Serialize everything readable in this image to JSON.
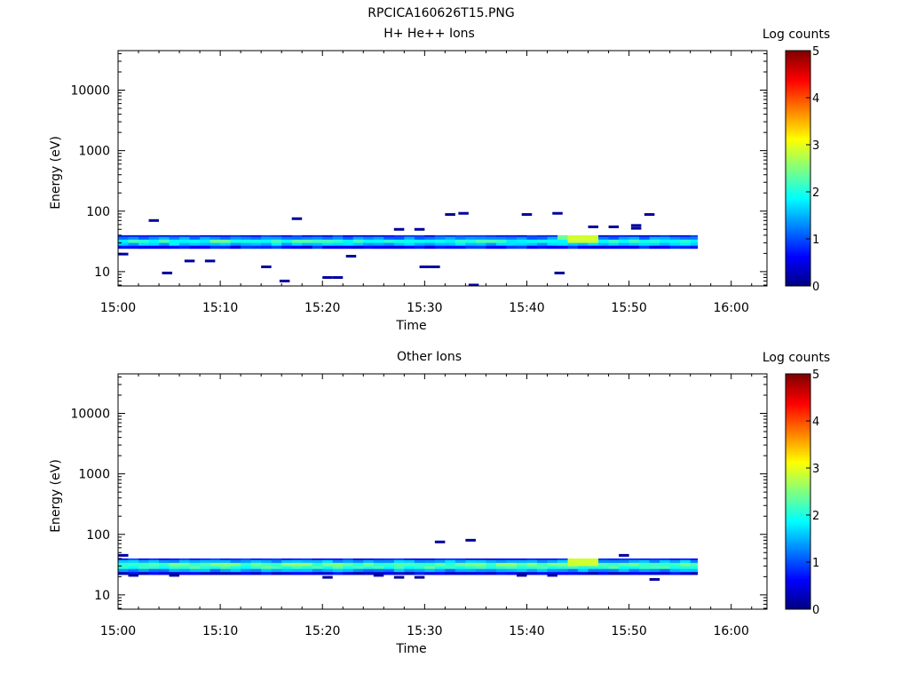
{
  "figure_title": "RPCICA160626T15.PNG",
  "chart_data": [
    {
      "type": "heatmap",
      "title": "H+ He++ Ions",
      "xlabel": "Time",
      "ylabel": "Energy (eV)",
      "x_ticks": [
        "15:00",
        "15:10",
        "15:20",
        "15:30",
        "15:40",
        "15:50",
        "16:00"
      ],
      "x_range_minutes": [
        0,
        63.5
      ],
      "data_end_minute": 56.7,
      "y_scale": "log",
      "y_range": [
        5.8,
        45000
      ],
      "y_ticks": [
        10,
        100,
        1000,
        10000
      ],
      "y_tick_labels": [
        "10",
        "100",
        "1000",
        "10000"
      ],
      "colorbar": {
        "label": "Log counts",
        "range": [
          0,
          5
        ],
        "ticks": [
          "0",
          "1",
          "2",
          "3",
          "4",
          "5"
        ]
      },
      "band": [
        {
          "e_lo": 24,
          "e_hi": 27,
          "log_counts": 0.7
        },
        {
          "e_lo": 27,
          "e_hi": 30,
          "log_counts": 1.6
        },
        {
          "e_lo": 30,
          "e_hi": 34,
          "log_counts": 2.0
        },
        {
          "e_lo": 34,
          "e_hi": 38,
          "log_counts": 1.3
        },
        {
          "e_lo": 38,
          "e_hi": 40,
          "log_counts": 0.7
        }
      ],
      "peaks": [
        {
          "t": 45.5,
          "e_lo": 30,
          "e_hi": 40,
          "log_counts": 2.9
        },
        {
          "t": 44.5,
          "e_lo": 34,
          "e_hi": 40,
          "log_counts": 2.4
        },
        {
          "t": 10,
          "e_lo": 30,
          "e_hi": 34,
          "log_counts": 2.4
        },
        {
          "t": 18,
          "e_lo": 30,
          "e_hi": 34,
          "log_counts": 2.3
        }
      ],
      "sparse_points": [
        {
          "t": 0.5,
          "e": 19.5
        },
        {
          "t": 3.5,
          "e": 70
        },
        {
          "t": 4.8,
          "e": 9.5
        },
        {
          "t": 7,
          "e": 15
        },
        {
          "t": 9,
          "e": 15
        },
        {
          "t": 14.5,
          "e": 12
        },
        {
          "t": 16.3,
          "e": 7
        },
        {
          "t": 17.5,
          "e": 75
        },
        {
          "t": 20.5,
          "e": 8
        },
        {
          "t": 21.5,
          "e": 8
        },
        {
          "t": 22.8,
          "e": 18
        },
        {
          "t": 27.5,
          "e": 50
        },
        {
          "t": 29.5,
          "e": 50
        },
        {
          "t": 30,
          "e": 12
        },
        {
          "t": 31,
          "e": 12
        },
        {
          "t": 32.5,
          "e": 88
        },
        {
          "t": 33.8,
          "e": 92
        },
        {
          "t": 34.8,
          "e": 6
        },
        {
          "t": 40,
          "e": 88
        },
        {
          "t": 43,
          "e": 92
        },
        {
          "t": 43.2,
          "e": 9.5
        },
        {
          "t": 46.5,
          "e": 55
        },
        {
          "t": 48.5,
          "e": 55
        },
        {
          "t": 50.7,
          "e": 58
        },
        {
          "t": 50.7,
          "e": 52
        },
        {
          "t": 52,
          "e": 88
        }
      ]
    },
    {
      "type": "heatmap",
      "title": "Other Ions",
      "xlabel": "Time",
      "ylabel": "Energy (eV)",
      "x_ticks": [
        "15:00",
        "15:10",
        "15:20",
        "15:30",
        "15:40",
        "15:50",
        "16:00"
      ],
      "x_range_minutes": [
        0,
        63.5
      ],
      "data_end_minute": 56.7,
      "y_scale": "log",
      "y_range": [
        5.8,
        45000
      ],
      "y_ticks": [
        10,
        100,
        1000,
        10000
      ],
      "y_tick_labels": [
        "10",
        "100",
        "1000",
        "10000"
      ],
      "colorbar": {
        "label": "Log counts",
        "range": [
          0,
          5
        ],
        "ticks": [
          "0",
          "1",
          "2",
          "3",
          "4",
          "5"
        ]
      },
      "band": [
        {
          "e_lo": 21.5,
          "e_hi": 24,
          "log_counts": 0.5
        },
        {
          "e_lo": 24,
          "e_hi": 27,
          "log_counts": 1.4
        },
        {
          "e_lo": 27,
          "e_hi": 30,
          "log_counts": 2.1
        },
        {
          "e_lo": 30,
          "e_hi": 34,
          "log_counts": 2.3
        },
        {
          "e_lo": 34,
          "e_hi": 38,
          "log_counts": 1.5
        },
        {
          "e_lo": 38,
          "e_hi": 40,
          "log_counts": 0.7
        }
      ],
      "peaks": [
        {
          "t": 45.5,
          "e_lo": 30,
          "e_hi": 40,
          "log_counts": 2.9
        },
        {
          "t": 17.5,
          "e_lo": 30,
          "e_hi": 34,
          "log_counts": 2.6
        },
        {
          "t": 38,
          "e_lo": 30,
          "e_hi": 34,
          "log_counts": 2.6
        }
      ],
      "sparse_points": [
        {
          "t": 0.5,
          "e": 45
        },
        {
          "t": 1.5,
          "e": 21
        },
        {
          "t": 5.5,
          "e": 21
        },
        {
          "t": 20.5,
          "e": 19.5
        },
        {
          "t": 25.5,
          "e": 21
        },
        {
          "t": 27.5,
          "e": 19.5
        },
        {
          "t": 29.5,
          "e": 19.5
        },
        {
          "t": 31.5,
          "e": 75
        },
        {
          "t": 34.5,
          "e": 80
        },
        {
          "t": 39.5,
          "e": 21
        },
        {
          "t": 42.5,
          "e": 21
        },
        {
          "t": 49.5,
          "e": 45
        },
        {
          "t": 52.5,
          "e": 18
        }
      ]
    }
  ]
}
